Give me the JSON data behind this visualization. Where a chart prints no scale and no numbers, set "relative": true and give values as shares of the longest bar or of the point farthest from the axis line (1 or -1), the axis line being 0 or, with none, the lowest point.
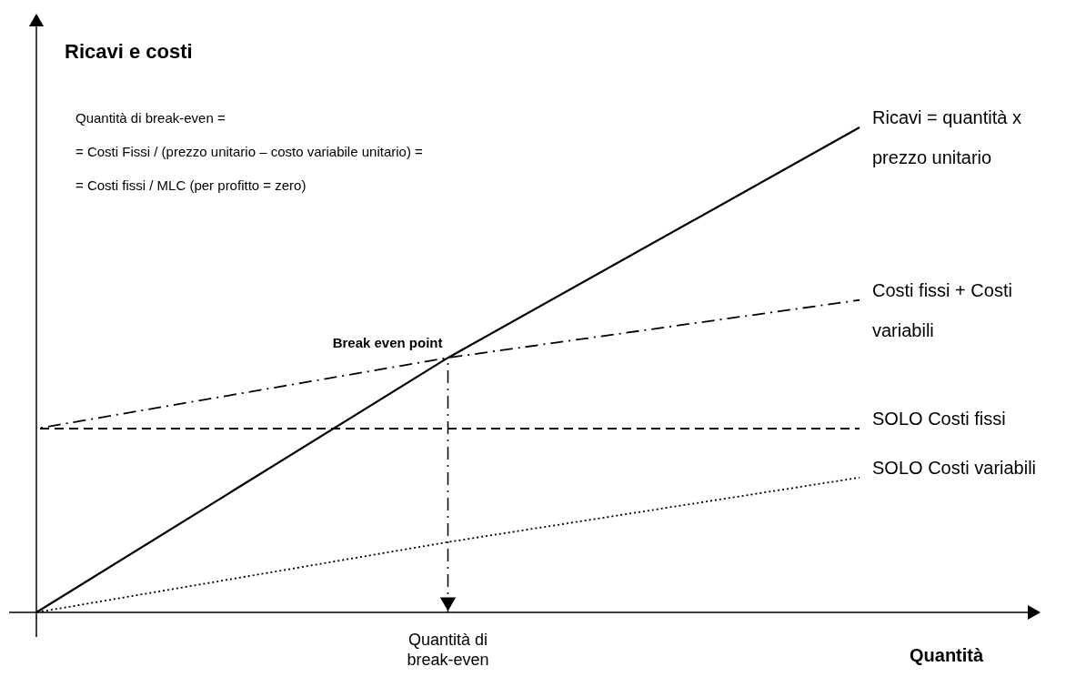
{
  "chart_data": {
    "type": "line",
    "relative": true,
    "xlabel": "Quantità",
    "ylabel": "Ricavi e costi",
    "categories": [
      null,
      null,
      null
    ],
    "series": [
      {
        "name": "Ricavi = quantità x prezzo unitario",
        "color": "#000000",
        "line_style": "solid",
        "values": [
          0,
          0.525,
          1
        ]
      },
      {
        "name": "Costi fissi + Costi variabili",
        "color": "#000000",
        "line_style": "dashdot",
        "values": [
          0.379,
          0.525,
          0.644
        ]
      },
      {
        "name": "SOLO Costi fissi",
        "color": "#000000",
        "line_style": "dashed",
        "values": [
          0.379,
          0.379,
          0.379
        ]
      },
      {
        "name": "SOLO Costi variabili",
        "color": "#000000",
        "line_style": "dotted",
        "values": [
          0,
          0.145,
          0.278
        ]
      }
    ],
    "annotations": [
      "Break even point",
      "Quantità di break-even",
      "Quantità di break-even =",
      "= Costi Fissi / (prezzo unitario – costo variabile unitario) =",
      "= Costi fissi / MLC (per profitto = zero)"
    ]
  }
}
